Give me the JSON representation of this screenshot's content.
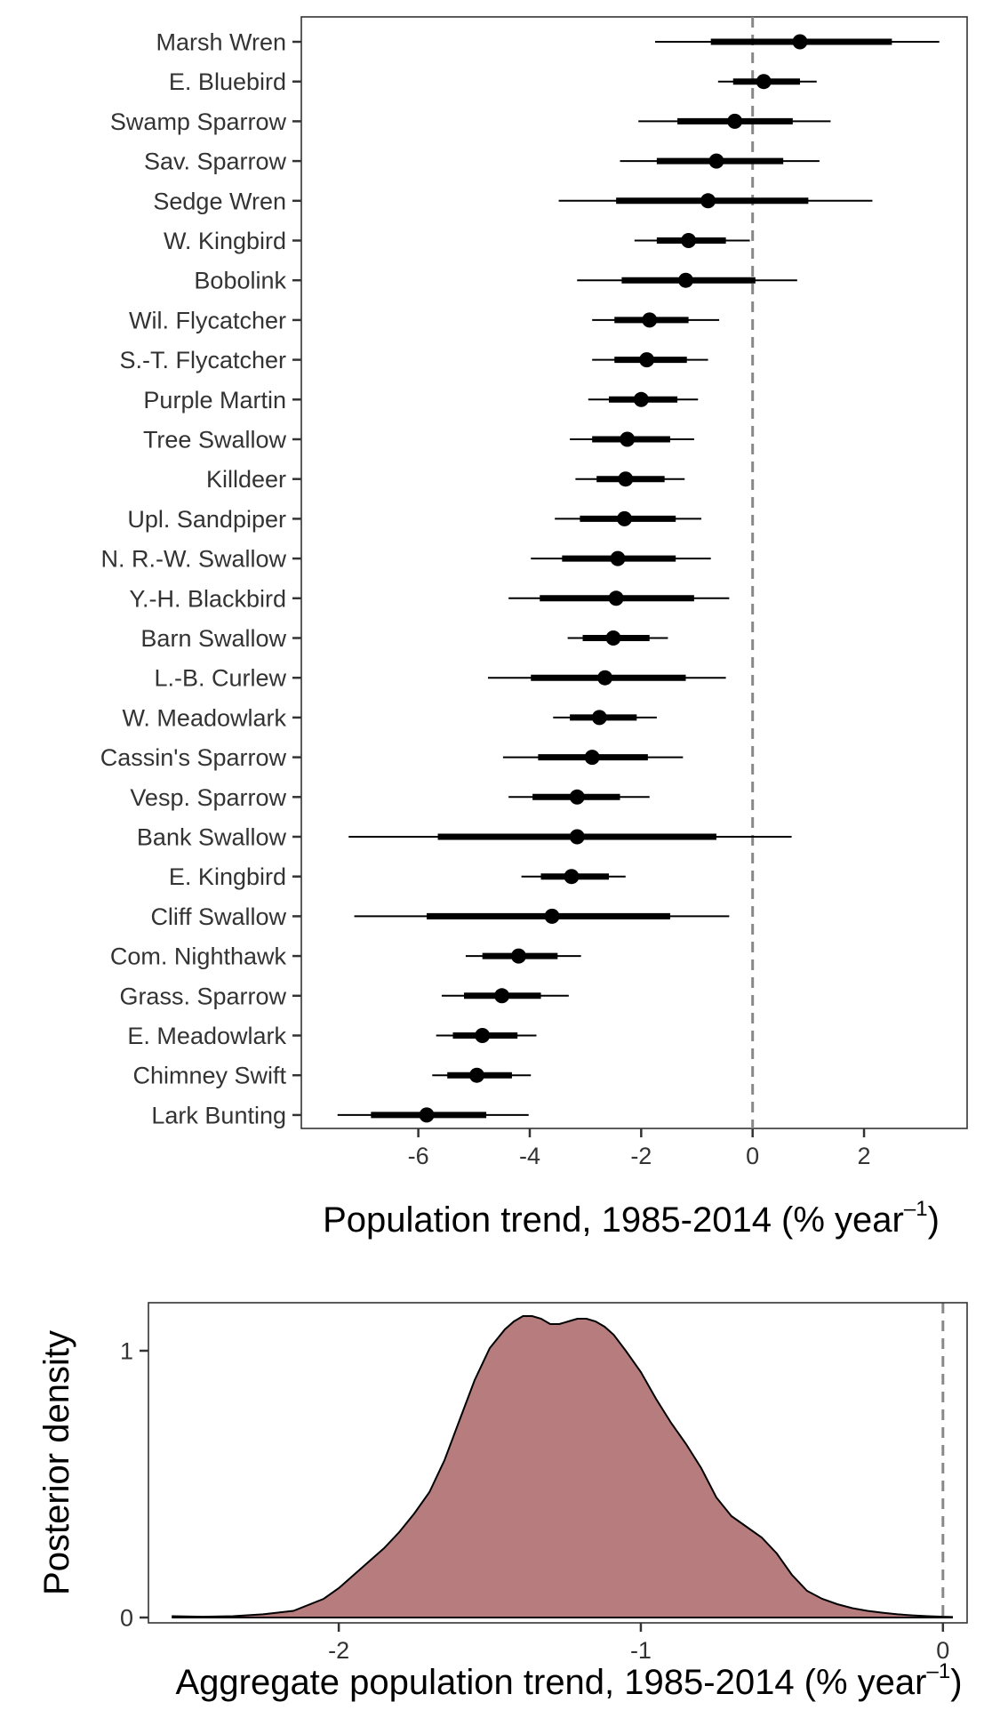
{
  "chart_data": [
    {
      "type": "interval",
      "xlabel": "Population trend, 1985-2014 (% year",
      "xlabel_sup": "–1",
      "xlabel_close": ")",
      "xlim": [
        -8.1,
        3.85
      ],
      "xticks": [
        -6,
        -4,
        -2,
        0,
        2
      ],
      "xtick_labels": [
        "-6",
        "-4",
        "-2",
        "0",
        "2"
      ],
      "reference_line_x": 0,
      "grid": false,
      "categories": [
        "Marsh Wren",
        "E. Bluebird",
        "Swamp Sparrow",
        "Sav. Sparrow",
        "Sedge Wren",
        "W. Kingbird",
        "Bobolink",
        "Wil. Flycatcher",
        "S.-T. Flycatcher",
        "Purple Martin",
        "Tree Swallow",
        "Killdeer",
        "Upl. Sandpiper",
        "N. R.-W. Swallow",
        "Y.-H. Blackbird",
        "Barn Swallow",
        "L.-B. Curlew",
        "W. Meadowlark",
        "Cassin's Sparrow",
        "Vesp. Sparrow",
        "Bank Swallow",
        "E. Kingbird",
        "Cliff Swallow",
        "Com. Nighthawk",
        "Grass. Sparrow",
        "E. Meadowlark",
        "Chimney Swift",
        "Lark Bunting"
      ],
      "median": [
        0.85,
        0.2,
        -0.32,
        -0.65,
        -0.8,
        -1.15,
        -1.2,
        -1.85,
        -1.9,
        -2.0,
        -2.25,
        -2.28,
        -2.3,
        -2.42,
        -2.45,
        -2.5,
        -2.65,
        -2.75,
        -2.88,
        -3.15,
        -3.15,
        -3.25,
        -3.6,
        -4.2,
        -4.5,
        -4.85,
        -4.95,
        -5.85
      ],
      "inner_low": [
        -0.75,
        -0.35,
        -1.35,
        -1.72,
        -2.45,
        -1.72,
        -2.35,
        -2.48,
        -2.48,
        -2.58,
        -2.88,
        -2.8,
        -3.1,
        -3.42,
        -3.82,
        -3.05,
        -3.98,
        -3.28,
        -3.85,
        -3.95,
        -5.65,
        -3.8,
        -5.85,
        -4.85,
        -5.18,
        -5.38,
        -5.48,
        -6.85
      ],
      "inner_high": [
        2.5,
        0.85,
        0.72,
        0.55,
        1.0,
        -0.48,
        0.05,
        -1.15,
        -1.18,
        -1.35,
        -1.48,
        -1.58,
        -1.38,
        -1.38,
        -1.05,
        -1.85,
        -1.2,
        -2.08,
        -1.88,
        -2.38,
        -0.65,
        -2.58,
        -1.48,
        -3.5,
        -3.8,
        -4.22,
        -4.32,
        -4.78
      ],
      "outer_low": [
        -1.75,
        -0.62,
        -2.05,
        -2.38,
        -3.48,
        -2.12,
        -3.15,
        -2.88,
        -2.88,
        -2.95,
        -3.28,
        -3.18,
        -3.55,
        -3.98,
        -4.38,
        -3.32,
        -4.75,
        -3.58,
        -4.48,
        -4.38,
        -7.25,
        -4.15,
        -7.15,
        -5.15,
        -5.58,
        -5.68,
        -5.75,
        -7.45
      ],
      "outer_high": [
        3.35,
        1.15,
        1.4,
        1.2,
        2.15,
        -0.05,
        0.8,
        -0.6,
        -0.8,
        -0.98,
        -1.05,
        -1.22,
        -0.92,
        -0.75,
        -0.42,
        -1.52,
        -0.48,
        -1.72,
        -1.25,
        -1.85,
        0.7,
        -2.28,
        -0.42,
        -3.08,
        -3.3,
        -3.88,
        -3.98,
        -4.02
      ]
    },
    {
      "type": "area",
      "xlabel": "Aggregate population trend, 1985-2014 (% year",
      "xlabel_sup": "–1",
      "xlabel_close": ")",
      "ylabel": "Posterior density",
      "xlim": [
        -2.63,
        0.08
      ],
      "ylim": [
        -0.02,
        1.18
      ],
      "xticks": [
        -2,
        -1,
        0
      ],
      "xtick_labels": [
        "-2",
        "-1",
        "0"
      ],
      "yticks": [
        0,
        1
      ],
      "ytick_labels": [
        "0",
        "1"
      ],
      "reference_line_x": 0,
      "fill_color": "#b77c7d",
      "line_color": "#000000",
      "grid": false,
      "x": [
        -2.55,
        -2.45,
        -2.35,
        -2.25,
        -2.15,
        -2.05,
        -2.0,
        -1.95,
        -1.9,
        -1.85,
        -1.8,
        -1.75,
        -1.7,
        -1.65,
        -1.6,
        -1.55,
        -1.5,
        -1.45,
        -1.42,
        -1.39,
        -1.36,
        -1.33,
        -1.3,
        -1.27,
        -1.24,
        -1.21,
        -1.18,
        -1.15,
        -1.12,
        -1.09,
        -1.05,
        -1.0,
        -0.95,
        -0.9,
        -0.85,
        -0.8,
        -0.75,
        -0.7,
        -0.65,
        -0.6,
        -0.55,
        -0.5,
        -0.45,
        -0.4,
        -0.35,
        -0.3,
        -0.25,
        -0.2,
        -0.15,
        -0.1,
        -0.05,
        0.0,
        0.03
      ],
      "y": [
        0.005,
        0.003,
        0.005,
        0.012,
        0.025,
        0.07,
        0.11,
        0.16,
        0.21,
        0.26,
        0.32,
        0.39,
        0.47,
        0.59,
        0.74,
        0.89,
        1.01,
        1.08,
        1.11,
        1.13,
        1.13,
        1.12,
        1.1,
        1.1,
        1.11,
        1.12,
        1.12,
        1.11,
        1.09,
        1.06,
        1.0,
        0.92,
        0.82,
        0.73,
        0.65,
        0.56,
        0.45,
        0.38,
        0.34,
        0.3,
        0.24,
        0.16,
        0.1,
        0.07,
        0.05,
        0.035,
        0.025,
        0.018,
        0.012,
        0.008,
        0.005,
        0.003,
        0.002
      ]
    }
  ]
}
